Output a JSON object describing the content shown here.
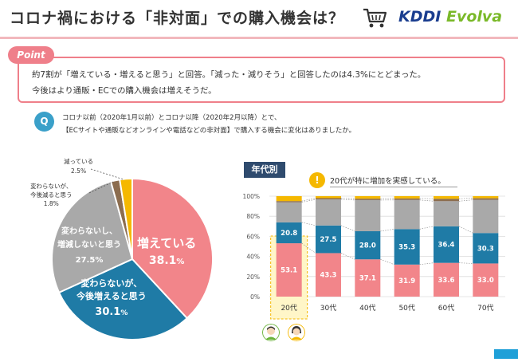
{
  "header": {
    "title": "コロナ禍における「非対面」での購入機会は？",
    "icon": "shopping-cart-icon",
    "logo_kddi": "KDDI",
    "logo_evolva": "Evolva"
  },
  "point": {
    "tag": "Point",
    "line1": "約7割が「増えている・増えると思う」と回答。「減った・減りそう」と回答したのは4.3%にとどまった。",
    "line2": "今後はより通販・ECでの購入機会は増えそうだ。"
  },
  "question": {
    "tag": "Q",
    "line1": "コロナ以前（2020年1月以前）とコロナ以降（2020年2月以降）とで、",
    "line2": "【ECサイトや通販などオンラインや電話などの非対面】で購入する機会に変化はありましたか。"
  },
  "colors": {
    "increase": "#f2858a",
    "will_increase": "#1f7ba6",
    "no_change": "#a9a9a9",
    "will_decrease": "#8c6d4f",
    "decreased": "#f5b800",
    "accent": "#ef7f8a"
  },
  "chart_data": [
    {
      "type": "pie",
      "slices": [
        {
          "label": "増えている",
          "value": 38.1,
          "display": "38.1%"
        },
        {
          "label": "変わらないが、今後増えると思う",
          "value": 30.1,
          "display": "30.1%"
        },
        {
          "label": "変わらないし、増減しないと思う",
          "value": 27.5,
          "display": "27.5%"
        },
        {
          "label": "変わらないが、今後減ると思う",
          "value": 1.8,
          "display": "1.8%"
        },
        {
          "label": "減っている",
          "value": 2.5,
          "display": "2.5%"
        }
      ],
      "labels": {
        "inc_1": "増えている",
        "inc_v": "38.1",
        "will_inc_1": "変わらないが、",
        "will_inc_2": "今後増えると思う",
        "will_inc_v": "30.1",
        "no_1": "変わらないし、",
        "no_2": "増減しないと思う",
        "no_v": "27.5%",
        "will_dec_1": "変わらないが、",
        "will_dec_2": "今後減ると思う",
        "will_dec_v": "1.8%",
        "dec_1": "減っている",
        "dec_v": "2.5%",
        "pct": "%"
      }
    },
    {
      "type": "bar",
      "stacked": true,
      "tag": "年代別",
      "note": "20代が特に増加を実感している。",
      "categories": [
        "20代",
        "30代",
        "40代",
        "50代",
        "60代",
        "70代"
      ],
      "y_ticks": [
        "0%",
        "20%",
        "40%",
        "60%",
        "80%",
        "100%"
      ],
      "ylim": [
        0,
        100
      ],
      "series": [
        {
          "key": "increase",
          "values": [
            53.1,
            43.3,
            37.1,
            31.9,
            33.6,
            33.0
          ],
          "labels": [
            "53.1",
            "43.3",
            "37.1",
            "31.9",
            "33.6",
            "33.0"
          ]
        },
        {
          "key": "will_increase",
          "values": [
            20.8,
            27.5,
            28.0,
            35.3,
            36.4,
            30.3
          ],
          "labels": [
            "20.8",
            "27.5",
            "28.0",
            "35.3",
            "36.4",
            "30.3"
          ]
        },
        {
          "key": "no_change",
          "values": [
            20.0,
            26.0,
            31.0,
            29.0,
            25.0,
            33.0
          ]
        },
        {
          "key": "will_decrease",
          "values": [
            1.2,
            1.2,
            1.4,
            1.5,
            2.4,
            1.6
          ]
        },
        {
          "key": "decreased",
          "values": [
            4.9,
            2.0,
            2.5,
            2.3,
            2.6,
            2.1
          ]
        }
      ]
    }
  ]
}
